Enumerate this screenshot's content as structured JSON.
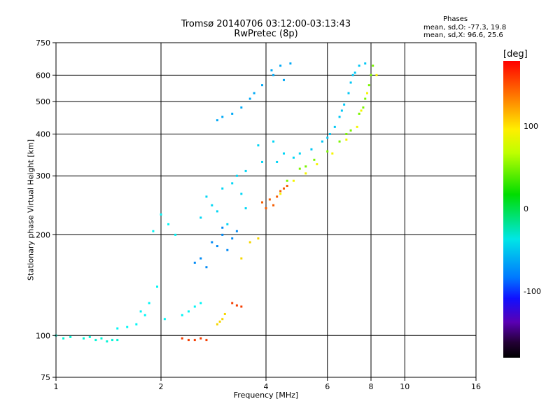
{
  "chart_data": {
    "type": "scatter",
    "title": "Tromsø 20140706 03:12:00-03:13:43",
    "subtitle": "RwPretec (8p)",
    "phase_stats": {
      "heading": "Phases",
      "line_o": "mean, sd,O: -77.3, 19.8",
      "line_x": "mean, sd,X:  96.6, 25.6"
    },
    "xlabel": "Frequency [MHz]",
    "ylabel": "Stationary phase Virtual Height [km]",
    "xscale": "log",
    "yscale": "log",
    "xlim": [
      1,
      16
    ],
    "ylim": [
      75,
      750
    ],
    "xticks": [
      1,
      2,
      4,
      6,
      8,
      10,
      16
    ],
    "yticks": [
      75,
      100,
      200,
      300,
      400,
      500,
      600,
      750
    ],
    "xtick_labels": [
      "1",
      "2",
      "4",
      "6",
      "8",
      "10",
      "16"
    ],
    "ytick_labels": [
      "75",
      "100",
      "200",
      "300",
      "400",
      "500",
      "600",
      "750"
    ],
    "grid": true,
    "colorbar": {
      "label": "[deg]",
      "ticks": [
        {
          "value": 100,
          "label": "100"
        },
        {
          "value": 0,
          "label": "0"
        },
        {
          "value": -100,
          "label": "-100"
        }
      ],
      "range": [
        -180,
        180
      ]
    },
    "series": [
      {
        "phase": -85,
        "points": [
          [
            4.15,
            620
          ],
          [
            4.4,
            640
          ],
          [
            4.7,
            650
          ],
          [
            4.2,
            600
          ],
          [
            3.9,
            560
          ],
          [
            3.6,
            510
          ],
          [
            3.4,
            480
          ],
          [
            3.2,
            460
          ],
          [
            3.0,
            450
          ],
          [
            2.9,
            440
          ],
          [
            4.5,
            580
          ],
          [
            3.7,
            530
          ]
        ]
      },
      {
        "phase": -70,
        "points": [
          [
            3.8,
            370
          ],
          [
            4.2,
            380
          ],
          [
            4.5,
            350
          ],
          [
            3.9,
            330
          ],
          [
            3.5,
            310
          ],
          [
            3.3,
            300
          ],
          [
            3.2,
            285
          ],
          [
            3.0,
            275
          ],
          [
            3.4,
            265
          ],
          [
            2.7,
            260
          ],
          [
            2.8,
            245
          ],
          [
            2.9,
            235
          ],
          [
            2.6,
            225
          ],
          [
            3.1,
            215
          ],
          [
            3.5,
            240
          ],
          [
            4.3,
            330
          ],
          [
            4.8,
            340
          ],
          [
            5.0,
            350
          ]
        ]
      },
      {
        "phase": -95,
        "points": [
          [
            3.0,
            200
          ],
          [
            3.2,
            195
          ],
          [
            2.9,
            185
          ],
          [
            3.1,
            180
          ],
          [
            3.0,
            210
          ],
          [
            3.3,
            205
          ],
          [
            2.8,
            190
          ],
          [
            2.6,
            170
          ],
          [
            2.5,
            165
          ],
          [
            2.7,
            160
          ]
        ]
      },
      {
        "phase": -75,
        "points": [
          [
            5.4,
            360
          ],
          [
            5.8,
            380
          ],
          [
            6.1,
            400
          ],
          [
            6.3,
            420
          ],
          [
            6.5,
            450
          ],
          [
            6.7,
            490
          ],
          [
            6.9,
            530
          ],
          [
            7.0,
            570
          ],
          [
            7.2,
            610
          ],
          [
            7.4,
            640
          ],
          [
            7.7,
            650
          ],
          [
            6.0,
            390
          ],
          [
            6.6,
            470
          ],
          [
            7.1,
            600
          ]
        ]
      },
      {
        "phase": -60,
        "points": [
          [
            1.9,
            205
          ],
          [
            2.0,
            230
          ],
          [
            2.1,
            215
          ],
          [
            2.2,
            200
          ],
          [
            1.95,
            140
          ],
          [
            1.85,
            125
          ],
          [
            1.8,
            115
          ],
          [
            1.7,
            108
          ],
          [
            1.6,
            106
          ],
          [
            1.5,
            105
          ],
          [
            2.3,
            115
          ],
          [
            2.4,
            118
          ],
          [
            2.5,
            122
          ],
          [
            2.6,
            125
          ],
          [
            1.75,
            118
          ],
          [
            2.05,
            112
          ]
        ]
      },
      {
        "phase": -50,
        "points": [
          [
            1.0,
            100
          ],
          [
            1.05,
            98
          ],
          [
            1.1,
            99
          ],
          [
            1.2,
            98
          ],
          [
            1.3,
            97
          ],
          [
            1.4,
            96
          ],
          [
            1.5,
            97
          ],
          [
            1.25,
            99
          ],
          [
            1.35,
            98
          ],
          [
            1.45,
            97
          ]
        ]
      },
      {
        "phase": 60,
        "points": [
          [
            4.6,
            290
          ],
          [
            5.0,
            315
          ],
          [
            5.5,
            335
          ],
          [
            6.0,
            355
          ],
          [
            6.5,
            380
          ],
          [
            7.0,
            410
          ],
          [
            7.4,
            460
          ],
          [
            7.7,
            510
          ],
          [
            7.9,
            560
          ],
          [
            8.0,
            600
          ],
          [
            8.1,
            640
          ],
          [
            7.6,
            480
          ],
          [
            6.8,
            400
          ],
          [
            5.2,
            320
          ]
        ]
      },
      {
        "phase": 100,
        "points": [
          [
            4.4,
            265
          ],
          [
            4.8,
            290
          ],
          [
            5.2,
            305
          ],
          [
            5.6,
            325
          ],
          [
            6.2,
            350
          ],
          [
            6.8,
            385
          ],
          [
            7.3,
            420
          ],
          [
            7.5,
            470
          ],
          [
            7.8,
            530
          ],
          [
            8.3,
            600
          ]
        ]
      },
      {
        "phase": 150,
        "points": [
          [
            3.9,
            250
          ],
          [
            4.0,
            240
          ],
          [
            4.1,
            255
          ],
          [
            4.2,
            245
          ],
          [
            4.3,
            260
          ],
          [
            4.4,
            270
          ],
          [
            4.5,
            275
          ],
          [
            4.6,
            280
          ]
        ]
      },
      {
        "phase": 160,
        "points": [
          [
            2.3,
            98
          ],
          [
            2.4,
            97
          ],
          [
            2.5,
            97
          ],
          [
            2.6,
            98
          ],
          [
            2.7,
            97
          ],
          [
            3.2,
            125
          ],
          [
            3.3,
            123
          ],
          [
            3.4,
            122
          ]
        ]
      },
      {
        "phase": 110,
        "points": [
          [
            2.9,
            108
          ],
          [
            3.0,
            112
          ],
          [
            3.05,
            116
          ],
          [
            2.95,
            110
          ],
          [
            3.6,
            190
          ],
          [
            3.8,
            195
          ],
          [
            3.4,
            170
          ]
        ]
      }
    ]
  }
}
